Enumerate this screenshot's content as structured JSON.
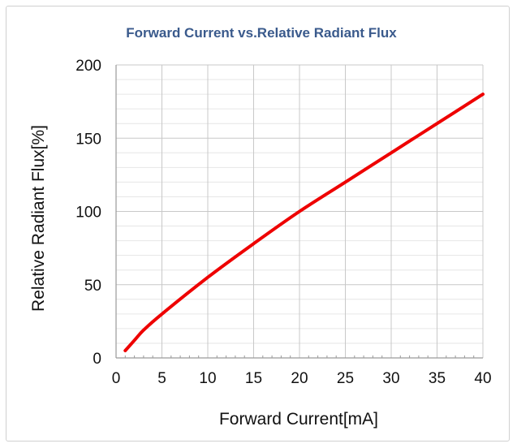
{
  "chart_data": {
    "type": "line",
    "title": "Forward Current vs.Relative Radiant Flux",
    "xlabel": "Forward Current[mA]",
    "ylabel": "Relative Radiant Flux[%]",
    "xlim": [
      0,
      40
    ],
    "ylim": [
      0,
      200
    ],
    "x_ticks": [
      "0",
      "5",
      "10",
      "15",
      "20",
      "25",
      "30",
      "35",
      "40"
    ],
    "y_ticks": [
      "0",
      "50",
      "100",
      "150",
      "200"
    ],
    "grid": true,
    "series": [
      {
        "color": "#ee0000",
        "x": [
          1,
          2,
          3,
          5,
          10,
          15,
          20,
          25,
          30,
          35,
          40
        ],
        "y": [
          5,
          12,
          19,
          30,
          55,
          78,
          100,
          120,
          140,
          160,
          180
        ]
      }
    ]
  }
}
